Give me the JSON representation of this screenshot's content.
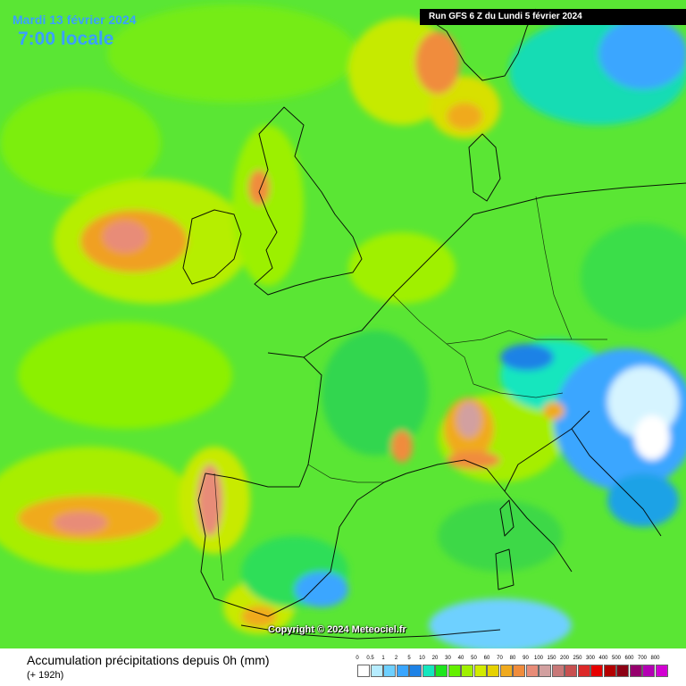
{
  "header": {
    "date": "Mardi 13 février 2024",
    "time": "7:00 locale"
  },
  "run": "Run GFS 6 Z du Lundi 5 février 2024",
  "copyright": "Copyright © 2024 Meteociel.fr",
  "legend": {
    "title": "Accumulation précipitations depuis 0h (mm)",
    "subtitle": "(+ 192h)",
    "scale": [
      {
        "label": "0",
        "color": "#ffffff"
      },
      {
        "label": "0.5",
        "color": "#b6ecff"
      },
      {
        "label": "1",
        "color": "#6ed0ff"
      },
      {
        "label": "2",
        "color": "#3aa6ff"
      },
      {
        "label": "5",
        "color": "#1e82e6"
      },
      {
        "label": "10",
        "color": "#14e6be"
      },
      {
        "label": "20",
        "color": "#1ee61e"
      },
      {
        "label": "30",
        "color": "#64f000"
      },
      {
        "label": "40",
        "color": "#a0f000"
      },
      {
        "label": "50",
        "color": "#d2eb00"
      },
      {
        "label": "60",
        "color": "#e6d200"
      },
      {
        "label": "70",
        "color": "#f0aa1e"
      },
      {
        "label": "80",
        "color": "#f08c3c"
      },
      {
        "label": "90",
        "color": "#e88c78"
      },
      {
        "label": "100",
        "color": "#d2a0a0"
      },
      {
        "label": "150",
        "color": "#c87878"
      },
      {
        "label": "200",
        "color": "#c85050"
      },
      {
        "label": "250",
        "color": "#dc2828"
      },
      {
        "label": "300",
        "color": "#e60000"
      },
      {
        "label": "400",
        "color": "#b40000"
      },
      {
        "label": "500",
        "color": "#8c0014"
      },
      {
        "label": "600",
        "color": "#96006e"
      },
      {
        "label": "700",
        "color": "#b400b4"
      },
      {
        "label": "800",
        "color": "#d200d2"
      }
    ]
  }
}
